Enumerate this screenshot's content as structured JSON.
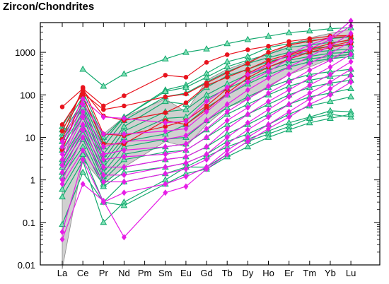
{
  "chart_data": {
    "type": "line",
    "title": "Zircon/Chondrites",
    "xlabel": "",
    "ylabel": "",
    "y_scale": "log",
    "ylim": [
      0.01,
      5000
    ],
    "y_ticks": [
      "0.01",
      "0.1",
      "1",
      "10",
      "100",
      "1000"
    ],
    "categories": [
      "La",
      "Ce",
      "Pr",
      "Nd",
      "Pm",
      "Sm",
      "Eu",
      "Gd",
      "Tb",
      "Dy",
      "Ho",
      "Er",
      "Tm",
      "Yb",
      "Lu"
    ],
    "grid": false,
    "legend": "none",
    "colors": {
      "red": "#e8141e",
      "green": "#14a86e",
      "magenta": "#e61ee6",
      "band": "#c8c8c8",
      "band_edge": "#8c8c8c"
    },
    "reference_band": {
      "lower": [
        0.008,
        3,
        0.8,
        2,
        null,
        8,
        6,
        20,
        50,
        80,
        150,
        300,
        450,
        700,
        900
      ],
      "upper": [
        2.5,
        80,
        12,
        30,
        null,
        80,
        40,
        220,
        400,
        600,
        900,
        1500,
        2200,
        2800,
        3500
      ]
    },
    "series": [
      {
        "group": "red",
        "values": [
          52,
          140,
          55,
          95,
          null,
          290,
          260,
          580,
          880,
          1150,
          1400,
          1800,
          2100,
          2400,
          2500
        ]
      },
      {
        "group": "red",
        "values": [
          20,
          110,
          45,
          55,
          null,
          90,
          105,
          190,
          330,
          550,
          1000,
          1500,
          1800,
          2200,
          2400
        ]
      },
      {
        "group": "red",
        "values": [
          14,
          130,
          32,
          25,
          null,
          38,
          65,
          165,
          260,
          400,
          650,
          900,
          1200,
          1600,
          2000
        ]
      },
      {
        "group": "red",
        "values": [
          9,
          150,
          12,
          11,
          null,
          18,
          25,
          55,
          140,
          320,
          550,
          850,
          1100,
          1400,
          1800
        ]
      },
      {
        "group": "red",
        "values": [
          5,
          95,
          7,
          7,
          null,
          25,
          20,
          45,
          110,
          250,
          450,
          700,
          1000,
          1300,
          1600
        ]
      },
      {
        "group": "green",
        "values": [
          null,
          400,
          160,
          310,
          null,
          700,
          1000,
          1200,
          1600,
          2000,
          2400,
          2900,
          3200,
          3600,
          3800
        ]
      },
      {
        "group": "green",
        "values": [
          18,
          120,
          10,
          30,
          null,
          130,
          170,
          320,
          600,
          800,
          1300,
          1600,
          1900,
          2100,
          2300
        ]
      },
      {
        "group": "green",
        "values": [
          15,
          90,
          8,
          30,
          null,
          120,
          150,
          260,
          460,
          650,
          900,
          1300,
          1500,
          1700,
          1900
        ]
      },
      {
        "group": "green",
        "values": [
          12,
          70,
          6,
          25,
          null,
          90,
          110,
          200,
          350,
          550,
          750,
          1000,
          1200,
          1400,
          1500
        ]
      },
      {
        "group": "green",
        "values": [
          10,
          60,
          4,
          18,
          null,
          70,
          60,
          150,
          280,
          400,
          600,
          800,
          1000,
          1100,
          1200
        ]
      },
      {
        "group": "green",
        "values": [
          8,
          50,
          3,
          14,
          null,
          40,
          45,
          100,
          180,
          300,
          450,
          650,
          800,
          950,
          1000
        ]
      },
      {
        "group": "green",
        "values": [
          6,
          40,
          2.5,
          10,
          null,
          28,
          30,
          80,
          140,
          230,
          380,
          550,
          700,
          800,
          900
        ]
      },
      {
        "group": "green",
        "values": [
          5,
          30,
          2,
          8,
          null,
          12,
          20,
          50,
          100,
          180,
          300,
          450,
          600,
          700,
          800
        ]
      },
      {
        "group": "green",
        "values": [
          3,
          20,
          1.5,
          6,
          null,
          9,
          10,
          25,
          50,
          90,
          150,
          220,
          300,
          350,
          400
        ]
      },
      {
        "group": "green",
        "values": [
          2.5,
          15,
          1.2,
          4,
          null,
          6,
          7,
          15,
          35,
          60,
          100,
          160,
          220,
          270,
          300
        ]
      },
      {
        "group": "green",
        "values": [
          2,
          12,
          1,
          3,
          null,
          4.5,
          5,
          10,
          20,
          35,
          60,
          100,
          150,
          190,
          220
        ]
      },
      {
        "group": "green",
        "values": [
          1.5,
          9,
          0.8,
          2,
          null,
          3,
          3.5,
          6,
          12,
          20,
          35,
          60,
          90,
          110,
          140
        ]
      },
      {
        "group": "green",
        "values": [
          1.2,
          6,
          0.7,
          1.5,
          null,
          2,
          2.5,
          4,
          8,
          12,
          20,
          35,
          55,
          70,
          90
        ]
      },
      {
        "group": "green",
        "values": [
          0.6,
          4,
          0.3,
          0.9,
          null,
          1.4,
          2,
          3.5,
          6,
          9,
          14,
          22,
          30,
          42,
          40
        ]
      },
      {
        "group": "green",
        "values": [
          0.4,
          2.8,
          0.1,
          0.3,
          null,
          1,
          2,
          2,
          4,
          8,
          12,
          18,
          28,
          35,
          30
        ]
      },
      {
        "group": "green",
        "values": [
          0.09,
          1.5,
          0.3,
          0.25,
          null,
          0.8,
          1.4,
          1.8,
          3.5,
          6,
          10,
          15,
          22,
          28,
          35
        ]
      },
      {
        "group": "magenta",
        "values": [
          8,
          80,
          30,
          28,
          null,
          22,
          24,
          70,
          150,
          300,
          500,
          900,
          1500,
          2200,
          5500
        ]
      },
      {
        "group": "magenta",
        "values": [
          6,
          60,
          12,
          12,
          null,
          14,
          16,
          40,
          100,
          200,
          350,
          700,
          1200,
          2000,
          4200
        ]
      },
      {
        "group": "magenta",
        "values": [
          4,
          40,
          6,
          8,
          null,
          9,
          11,
          25,
          60,
          130,
          250,
          450,
          800,
          1400,
          2800
        ]
      },
      {
        "group": "magenta",
        "values": [
          3,
          30,
          4,
          5,
          null,
          6,
          7,
          16,
          40,
          80,
          160,
          300,
          550,
          950,
          1800
        ]
      },
      {
        "group": "magenta",
        "values": [
          2.2,
          20,
          3,
          3.5,
          null,
          4,
          5,
          10,
          25,
          50,
          110,
          200,
          380,
          650,
          1300
        ]
      },
      {
        "group": "magenta",
        "values": [
          1.5,
          15,
          2,
          2,
          null,
          3,
          3.5,
          6,
          16,
          35,
          70,
          130,
          250,
          450,
          900
        ]
      },
      {
        "group": "magenta",
        "values": [
          1,
          10,
          1.3,
          1.3,
          null,
          2,
          2.5,
          4,
          10,
          22,
          45,
          90,
          170,
          300,
          600
        ]
      },
      {
        "group": "magenta",
        "values": [
          0.8,
          5,
          0.9,
          0.9,
          null,
          1.4,
          1.8,
          3,
          7,
          15,
          30,
          60,
          110,
          200,
          400
        ]
      },
      {
        "group": "magenta",
        "values": [
          0.06,
          3,
          0.3,
          0.5,
          null,
          0.8,
          1.2,
          2,
          5,
          10,
          20,
          40,
          80,
          140,
          280
        ]
      },
      {
        "group": "magenta",
        "values": [
          0.04,
          0.8,
          0.32,
          0.045,
          null,
          0.5,
          0.7,
          1.8,
          4,
          8,
          16,
          30,
          60,
          100,
          200
        ]
      }
    ]
  }
}
